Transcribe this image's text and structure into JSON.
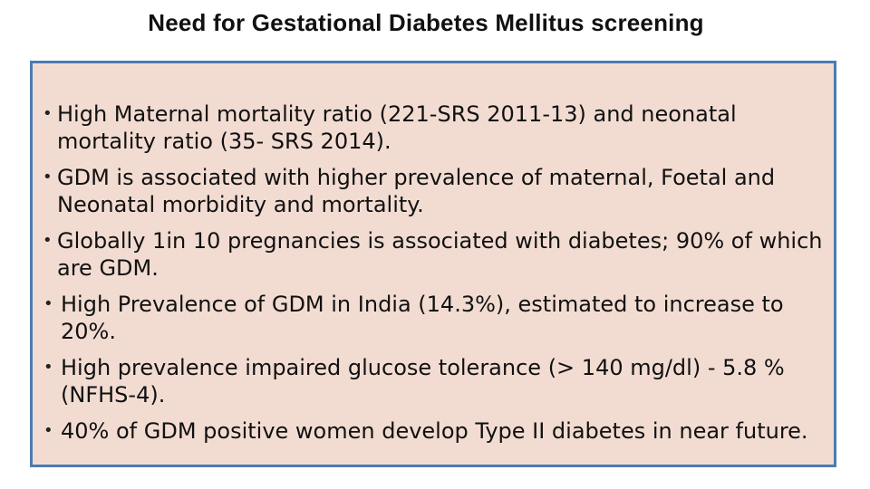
{
  "slide": {
    "title": "Need for Gestational Diabetes Mellitus screening",
    "bullet_glyph": "•",
    "bullets": [
      {
        "text": "High Maternal mortality  ratio (221-SRS 2011-13) and neonatal mortality ratio (35- SRS 2014)."
      },
      {
        "text": "GDM is associated with higher prevalence of maternal, Foetal and Neonatal morbidity and mortality."
      },
      {
        "text": "Globally  1in 10 pregnancies is associated with diabetes; 90% of which are GDM."
      },
      {
        "text": "High Prevalence of GDM in India (14.3%), estimated to increase to 20%."
      },
      {
        "text": "High prevalence impaired glucose tolerance (> 140 mg/dl) - 5.8 % (NFHS-4)."
      },
      {
        "text": "40% of GDM positive women develop Type II diabetes in near future."
      }
    ]
  },
  "colors": {
    "box_background": "#f2dcd2",
    "box_border": "#4a7cb3",
    "text": "#111111"
  }
}
